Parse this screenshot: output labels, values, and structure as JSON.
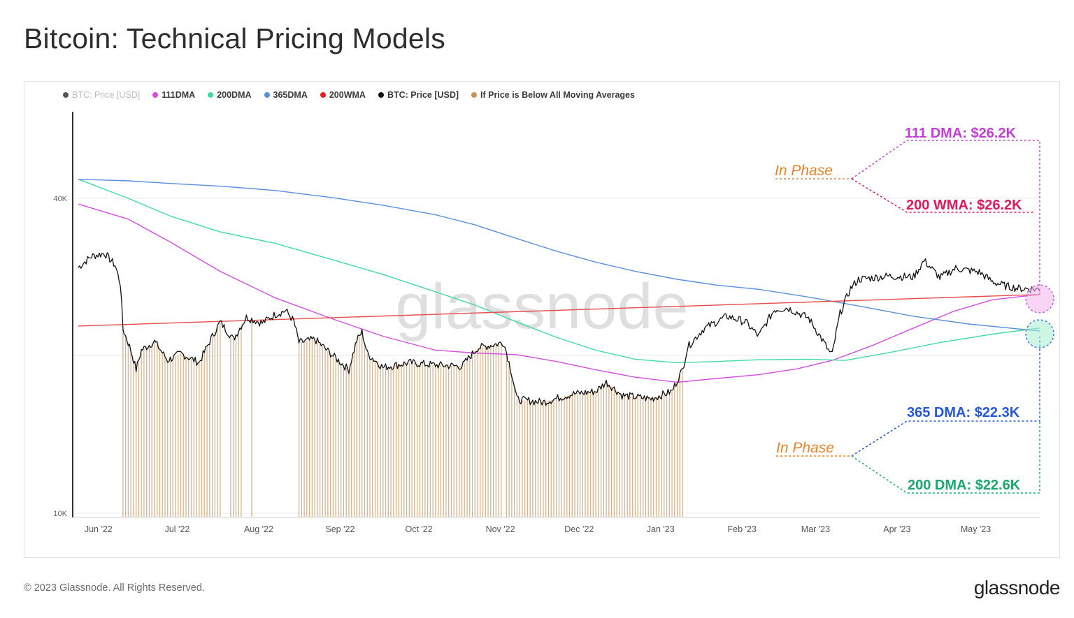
{
  "title": "Bitcoin: Technical Pricing Models",
  "footer": {
    "copyright": "© 2023 Glassnode. All Rights Reserved.",
    "logo": "glassnode"
  },
  "watermark": "glassnode",
  "legend": [
    {
      "label": "BTC: Price [USD]",
      "color": "#555555",
      "muted": true
    },
    {
      "label": "111DMA",
      "color": "#d44de0"
    },
    {
      "label": "200DMA",
      "color": "#3fdba4"
    },
    {
      "label": "365DMA",
      "color": "#5a8fe0"
    },
    {
      "label": "200WMA",
      "color": "#e52020"
    },
    {
      "label": "BTC: Price [USD]",
      "color": "#111111"
    },
    {
      "label": "If Price is Below All Moving Averages",
      "color": "#c8935a"
    }
  ],
  "annotations": {
    "top_phase": "In Phase",
    "bottom_phase": "In Phase",
    "dma111": "111 DMA: $26.2K",
    "wma200": "200 WMA: $26.2K",
    "dma365": "365 DMA: $22.3K",
    "dma200": "200 DMA: $22.6K"
  },
  "chart_data": {
    "type": "line",
    "y_scale": "log",
    "ylim": [
      10000,
      60000
    ],
    "y_ticks": [
      {
        "value": 40000,
        "label": "40K"
      },
      {
        "value": 10000,
        "label": "10K"
      }
    ],
    "x_ticks": [
      "Jun '22",
      "Jul '22",
      "Aug '22",
      "Sep '22",
      "Oct '22",
      "Nov '22",
      "Dec '22",
      "Jan '23",
      "Feb '23",
      "Mar '23",
      "Apr '23",
      "May '23"
    ],
    "x_start": "2022-05-27",
    "x_end": "2023-05-28",
    "series": [
      {
        "name": "111DMA",
        "color": "#d44de0",
        "points": [
          [
            "2022-05-27",
            39000
          ],
          [
            "2022-06-15",
            36500
          ],
          [
            "2022-07-01",
            33000
          ],
          [
            "2022-07-20",
            29000
          ],
          [
            "2022-08-10",
            25800
          ],
          [
            "2022-09-01",
            23500
          ],
          [
            "2022-09-20",
            21800
          ],
          [
            "2022-10-10",
            20500
          ],
          [
            "2022-10-25",
            20250
          ],
          [
            "2022-11-10",
            20100
          ],
          [
            "2022-11-25",
            19500
          ],
          [
            "2022-12-10",
            18800
          ],
          [
            "2022-12-25",
            18200
          ],
          [
            "2023-01-10",
            17800
          ],
          [
            "2023-01-25",
            18100
          ],
          [
            "2023-02-10",
            18400
          ],
          [
            "2023-02-25",
            18900
          ],
          [
            "2023-03-10",
            19600
          ],
          [
            "2023-03-25",
            20900
          ],
          [
            "2023-04-10",
            22600
          ],
          [
            "2023-04-25",
            24300
          ],
          [
            "2023-05-10",
            25600
          ],
          [
            "2023-05-28",
            26200
          ]
        ]
      },
      {
        "name": "200DMA",
        "color": "#3fdba4",
        "points": [
          [
            "2022-05-27",
            43500
          ],
          [
            "2022-06-15",
            40000
          ],
          [
            "2022-07-01",
            37000
          ],
          [
            "2022-07-20",
            34500
          ],
          [
            "2022-08-10",
            32800
          ],
          [
            "2022-09-01",
            30500
          ],
          [
            "2022-09-20",
            28600
          ],
          [
            "2022-10-10",
            26500
          ],
          [
            "2022-10-25",
            25000
          ],
          [
            "2022-11-10",
            23200
          ],
          [
            "2022-11-25",
            21700
          ],
          [
            "2022-12-10",
            20500
          ],
          [
            "2022-12-25",
            19700
          ],
          [
            "2023-01-10",
            19400
          ],
          [
            "2023-01-25",
            19500
          ],
          [
            "2023-02-10",
            19650
          ],
          [
            "2023-03-01",
            19700
          ],
          [
            "2023-03-15",
            19600
          ],
          [
            "2023-04-01",
            20300
          ],
          [
            "2023-04-20",
            21200
          ],
          [
            "2023-05-10",
            22000
          ],
          [
            "2023-05-28",
            22600
          ]
        ]
      },
      {
        "name": "365DMA",
        "color": "#5a8fe0",
        "points": [
          [
            "2022-05-27",
            43500
          ],
          [
            "2022-06-15",
            43200
          ],
          [
            "2022-07-01",
            42700
          ],
          [
            "2022-07-20",
            42200
          ],
          [
            "2022-08-10",
            41400
          ],
          [
            "2022-09-01",
            40100
          ],
          [
            "2022-09-20",
            38800
          ],
          [
            "2022-10-10",
            37200
          ],
          [
            "2022-10-25",
            35600
          ],
          [
            "2022-11-10",
            33500
          ],
          [
            "2022-11-25",
            31700
          ],
          [
            "2022-12-10",
            30200
          ],
          [
            "2022-12-25",
            29000
          ],
          [
            "2023-01-10",
            28000
          ],
          [
            "2023-01-25",
            27300
          ],
          [
            "2023-02-10",
            26800
          ],
          [
            "2023-03-01",
            25900
          ],
          [
            "2023-03-20",
            24900
          ],
          [
            "2023-04-10",
            23800
          ],
          [
            "2023-05-01",
            23000
          ],
          [
            "2023-05-28",
            22300
          ]
        ]
      },
      {
        "name": "200WMA",
        "color": "#e52020",
        "points": [
          [
            "2022-05-27",
            22800
          ],
          [
            "2023-05-28",
            26200
          ]
        ]
      },
      {
        "name": "BTC: Price [USD]",
        "color": "#111111",
        "points": [
          [
            "2022-05-27",
            29500
          ],
          [
            "2022-06-01",
            31000
          ],
          [
            "2022-06-06",
            31400
          ],
          [
            "2022-06-10",
            29800
          ],
          [
            "2022-06-12",
            27500
          ],
          [
            "2022-06-13",
            22500
          ],
          [
            "2022-06-16",
            20500
          ],
          [
            "2022-06-18",
            18800
          ],
          [
            "2022-06-20",
            20500
          ],
          [
            "2022-06-25",
            21300
          ],
          [
            "2022-06-30",
            19600
          ],
          [
            "2022-07-05",
            20200
          ],
          [
            "2022-07-12",
            19400
          ],
          [
            "2022-07-15",
            20800
          ],
          [
            "2022-07-20",
            23200
          ],
          [
            "2022-07-25",
            21500
          ],
          [
            "2022-07-30",
            23700
          ],
          [
            "2022-08-05",
            23100
          ],
          [
            "2022-08-10",
            24000
          ],
          [
            "2022-08-14",
            24400
          ],
          [
            "2022-08-17",
            23300
          ],
          [
            "2022-08-19",
            21200
          ],
          [
            "2022-08-25",
            21500
          ],
          [
            "2022-09-01",
            20000
          ],
          [
            "2022-09-07",
            18800
          ],
          [
            "2022-09-10",
            21400
          ],
          [
            "2022-09-12",
            22200
          ],
          [
            "2022-09-14",
            20200
          ],
          [
            "2022-09-20",
            19000
          ],
          [
            "2022-09-30",
            19400
          ],
          [
            "2022-10-10",
            19200
          ],
          [
            "2022-10-20",
            19100
          ],
          [
            "2022-10-26",
            20700
          ],
          [
            "2022-11-05",
            21200
          ],
          [
            "2022-11-08",
            18500
          ],
          [
            "2022-11-10",
            16500
          ],
          [
            "2022-11-20",
            16300
          ],
          [
            "2022-12-01",
            16900
          ],
          [
            "2022-12-10",
            17100
          ],
          [
            "2022-12-14",
            17800
          ],
          [
            "2022-12-20",
            16800
          ],
          [
            "2022-12-31",
            16550
          ],
          [
            "2023-01-08",
            17100
          ],
          [
            "2023-01-12",
            18800
          ],
          [
            "2023-01-14",
            20800
          ],
          [
            "2023-01-20",
            22500
          ],
          [
            "2023-01-29",
            23800
          ],
          [
            "2023-02-05",
            23200
          ],
          [
            "2023-02-10",
            21800
          ],
          [
            "2023-02-16",
            24500
          ],
          [
            "2023-02-21",
            24700
          ],
          [
            "2023-03-01",
            23600
          ],
          [
            "2023-03-09",
            20300
          ],
          [
            "2023-03-10",
            20100
          ],
          [
            "2023-03-13",
            24100
          ],
          [
            "2023-03-17",
            26900
          ],
          [
            "2023-03-20",
            28000
          ],
          [
            "2023-03-31",
            28400
          ],
          [
            "2023-04-10",
            28300
          ],
          [
            "2023-04-14",
            30400
          ],
          [
            "2023-04-20",
            28200
          ],
          [
            "2023-04-26",
            29400
          ],
          [
            "2023-05-05",
            28900
          ],
          [
            "2023-05-10",
            27700
          ],
          [
            "2023-05-15",
            27200
          ],
          [
            "2023-05-20",
            26900
          ],
          [
            "2023-05-28",
            26800
          ]
        ]
      }
    ],
    "below_all_ma_periods": [
      [
        "2022-06-13",
        "2022-07-20"
      ],
      [
        "2022-07-24",
        "2022-07-28"
      ],
      [
        "2022-08-01",
        "2022-08-01"
      ],
      [
        "2022-08-19",
        "2022-11-04"
      ],
      [
        "2022-11-06",
        "2023-01-12"
      ]
    ]
  }
}
